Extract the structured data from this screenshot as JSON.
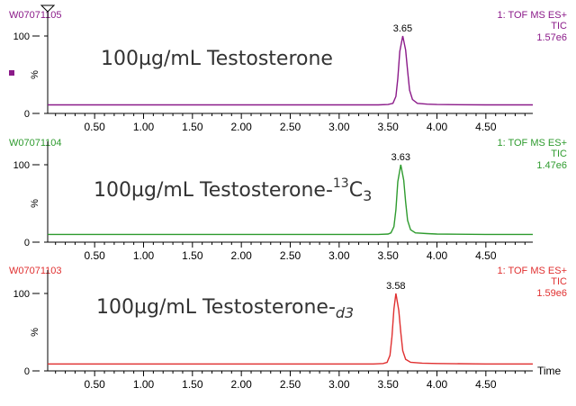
{
  "colors": {
    "purple": "#8B1A89",
    "green": "#2E9B2E",
    "red": "#E03030",
    "axis": "#000000"
  },
  "chart_data": [
    {
      "type": "line",
      "sample_id": "W07071105",
      "instrument": "1: TOF MS ES+",
      "mode": "TIC",
      "intensity": "1.57e6",
      "title_main": "100µg/mL Testosterone",
      "title_sup": "",
      "title_base": "",
      "title_sub": "",
      "color": "#8B1A89",
      "xlim": [
        0.02,
        4.98
      ],
      "ylim": [
        0,
        100
      ],
      "x_ticks": [
        "0.50",
        "1.00",
        "1.50",
        "2.00",
        "2.50",
        "3.00",
        "3.50",
        "4.00",
        "4.50"
      ],
      "y_ticks": [
        "100",
        "%",
        "0"
      ],
      "peak": {
        "label": "3.65",
        "x": 3.65,
        "y": 100
      },
      "baseline": 11,
      "series": [
        {
          "x": [
            0.02,
            0.5,
            1.0,
            1.5,
            2.0,
            2.5,
            3.0,
            3.4,
            3.5,
            3.55,
            3.58,
            3.6,
            3.62,
            3.65,
            3.68,
            3.7,
            3.72,
            3.75,
            3.8,
            3.9,
            4.0,
            4.5,
            4.98
          ],
          "y": [
            11,
            11,
            11,
            11,
            11,
            11,
            11,
            11,
            11.5,
            13,
            22,
            45,
            80,
            100,
            82,
            55,
            30,
            18,
            13,
            12,
            11.5,
            11,
            11
          ]
        }
      ]
    },
    {
      "type": "line",
      "sample_id": "W07071104",
      "instrument": "1: TOF MS ES+",
      "mode": "TIC",
      "intensity": "1.47e6",
      "title_main": "100µg/mL Testosterone-",
      "title_sup": "13",
      "title_base": "C",
      "title_sub": "3",
      "color": "#2E9B2E",
      "xlim": [
        0.02,
        4.98
      ],
      "ylim": [
        0,
        100
      ],
      "x_ticks": [
        "0.50",
        "1.00",
        "1.50",
        "2.00",
        "2.50",
        "3.00",
        "3.50",
        "4.00",
        "4.50"
      ],
      "y_ticks": [
        "100",
        "%",
        "0"
      ],
      "peak": {
        "label": "3.63",
        "x": 3.63,
        "y": 100
      },
      "baseline": 10,
      "series": [
        {
          "x": [
            0.02,
            0.5,
            1.0,
            1.5,
            2.0,
            2.5,
            3.0,
            3.4,
            3.5,
            3.53,
            3.56,
            3.58,
            3.6,
            3.63,
            3.66,
            3.68,
            3.7,
            3.73,
            3.78,
            3.9,
            4.0,
            4.5,
            4.98
          ],
          "y": [
            10,
            10,
            10,
            10,
            10,
            10,
            10,
            10,
            10.5,
            12,
            20,
            42,
            78,
            100,
            80,
            52,
            28,
            16,
            12,
            11,
            10.5,
            10,
            10
          ]
        }
      ]
    },
    {
      "type": "line",
      "sample_id": "W07071103",
      "instrument": "1: TOF MS ES+",
      "mode": "TIC",
      "intensity": "1.59e6",
      "title_main": "100µg/mL Testosterone-",
      "title_sup": "",
      "title_base": "",
      "title_sub": "d3",
      "color": "#E03030",
      "xlim": [
        0.02,
        4.98
      ],
      "ylim": [
        0,
        100
      ],
      "x_ticks": [
        "0.50",
        "1.00",
        "1.50",
        "2.00",
        "2.50",
        "3.00",
        "3.50",
        "4.00",
        "4.50"
      ],
      "y_ticks": [
        "100",
        "%",
        "0"
      ],
      "peak": {
        "label": "3.58",
        "x": 3.58,
        "y": 100
      },
      "baseline": 9,
      "xlabel": "Time",
      "series": [
        {
          "x": [
            0.02,
            0.5,
            1.0,
            1.5,
            2.0,
            2.5,
            3.0,
            3.35,
            3.45,
            3.49,
            3.52,
            3.54,
            3.56,
            3.58,
            3.61,
            3.63,
            3.65,
            3.68,
            3.73,
            3.85,
            4.0,
            4.5,
            4.98
          ],
          "y": [
            9,
            9,
            9,
            9,
            9,
            9,
            9,
            9,
            9.5,
            11,
            20,
            44,
            80,
            100,
            78,
            50,
            26,
            15,
            11,
            10,
            9.5,
            9,
            9
          ]
        }
      ]
    }
  ]
}
